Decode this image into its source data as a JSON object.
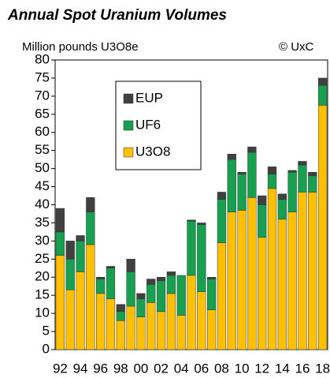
{
  "chart_data": {
    "type": "stacked_bar",
    "title": "Annual Spot Uranium Volumes",
    "subtitle": "Million pounds U3O8e",
    "annotation": "© UxC",
    "categories": [
      "92",
      null,
      "94",
      null,
      "96",
      null,
      "98",
      null,
      "00",
      null,
      "02",
      null,
      "04",
      null,
      "06",
      null,
      "08",
      null,
      "10",
      null,
      "12",
      null,
      "14",
      null,
      "16",
      null,
      "18"
    ],
    "series": [
      {
        "name": "U3O8",
        "color": "#ffc000",
        "values": [
          26,
          16.5,
          21.5,
          29,
          15.5,
          14,
          8,
          12,
          9,
          13,
          10.5,
          15.5,
          9.5,
          20.5,
          16,
          11,
          29.5,
          38,
          38.5,
          42,
          31,
          44.5,
          36,
          38,
          43.5,
          43.5,
          67.5
        ]
      },
      {
        "name": "UF6",
        "color": "#17a050",
        "values": [
          6.5,
          8.5,
          8.5,
          9,
          4,
          8.5,
          2.5,
          9.5,
          5,
          5,
          8.5,
          5,
          11,
          15,
          18.5,
          8.5,
          12,
          14.5,
          10,
          12.5,
          9,
          4,
          5.5,
          11,
          7.5,
          4.5,
          5.5
        ]
      },
      {
        "name": "EUP",
        "color": "#404040",
        "values": [
          6.5,
          5,
          1.5,
          4,
          0.5,
          0.5,
          2,
          3.5,
          1.5,
          1.5,
          1,
          1,
          0,
          0.3,
          0.5,
          0.5,
          2,
          1.5,
          0.5,
          1.5,
          2.5,
          2,
          1.5,
          0.5,
          1,
          1,
          2
        ]
      }
    ],
    "ylim": [
      0,
      80
    ],
    "yticks": [
      0,
      5,
      10,
      15,
      20,
      25,
      30,
      35,
      40,
      45,
      50,
      55,
      60,
      65,
      70,
      75,
      80
    ]
  }
}
